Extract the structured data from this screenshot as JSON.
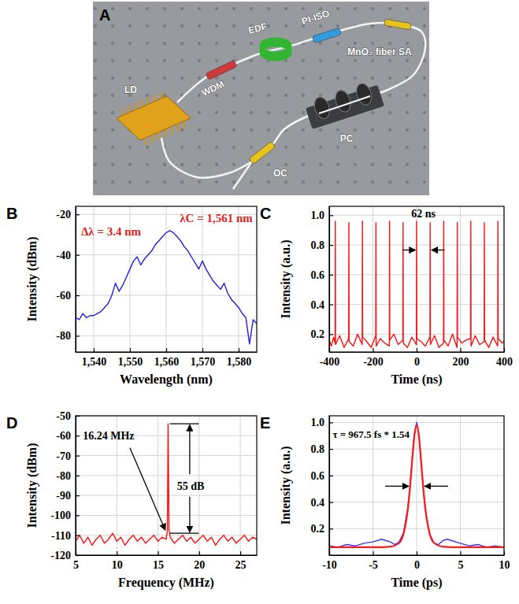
{
  "diagram": {
    "panel_label": "A",
    "components": [
      "LD",
      "WDM",
      "EDF",
      "PI-ISO",
      "MnO₂ fiber SA",
      "PC",
      "OC"
    ]
  },
  "chart_data": [
    {
      "panel_label": "B",
      "type": "line",
      "x_label": "Wavelength (nm)",
      "y_label": "Intensity (dBm)",
      "xlim": [
        1535,
        1585
      ],
      "xticks": [
        {
          "value": 1540,
          "label": "1,540"
        },
        {
          "value": 1550,
          "label": "1,550"
        },
        {
          "value": 1560,
          "label": "1,560"
        },
        {
          "value": 1570,
          "label": "1,570"
        },
        {
          "value": 1580,
          "label": "1,580"
        }
      ],
      "ylim": [
        -88,
        -16
      ],
      "yticks": [
        -80,
        -60,
        -40,
        -20
      ],
      "grid": true,
      "x": [
        1535,
        1536,
        1537,
        1538,
        1539,
        1540,
        1541,
        1542,
        1543,
        1544,
        1545,
        1546,
        1547,
        1548,
        1549,
        1550,
        1551,
        1552,
        1553,
        1554,
        1555,
        1556,
        1557,
        1558,
        1559,
        1560,
        1561,
        1562,
        1563,
        1564,
        1565,
        1566,
        1567,
        1568,
        1569,
        1570,
        1571,
        1572,
        1573,
        1574,
        1575,
        1576,
        1577,
        1578,
        1579,
        1580,
        1581,
        1582,
        1583,
        1584,
        1585
      ],
      "series": [
        {
          "color": "#1f1fe0",
          "values": [
            -71,
            -72,
            -69,
            -71,
            -70,
            -70,
            -69,
            -68,
            -66,
            -64,
            -60,
            -54,
            -58,
            -55,
            -51,
            -47,
            -43,
            -41,
            -45,
            -42,
            -40,
            -38,
            -35,
            -33,
            -31,
            -29,
            -28,
            -29,
            -31,
            -33,
            -36,
            -38,
            -41,
            -44,
            -47,
            -43,
            -47,
            -50,
            -53,
            -55,
            -57,
            -54,
            -59,
            -62,
            -64,
            -66,
            -69,
            -71,
            -84,
            -72,
            -74
          ]
        }
      ],
      "annotations": [
        "Δλ = 3.4 nm",
        "λC = 1,561 nm"
      ]
    },
    {
      "panel_label": "C",
      "type": "line",
      "x_label": "Time (ns)",
      "y_label": "Intensity (a.u.)",
      "xlim": [
        -400,
        400
      ],
      "xticks": [
        -400,
        -200,
        0,
        200,
        400
      ],
      "ylim": [
        0.08,
        1.06
      ],
      "yticks": [
        0.2,
        0.4,
        0.6,
        0.8,
        {
          "value": 1,
          "label": "1.0"
        }
      ],
      "grid": true,
      "x": [
        -400,
        -390,
        -380,
        -373,
        -372,
        -371,
        -352,
        -332,
        -311,
        -310,
        -309,
        -290,
        -270,
        -249,
        -248,
        -247,
        -228,
        -208,
        -187,
        -186,
        -185,
        -166,
        -146,
        -125,
        -124,
        -123,
        -104,
        -84,
        -63,
        -62,
        -61,
        -42,
        -22,
        -1,
        0,
        1,
        20,
        40,
        61,
        62,
        63,
        82,
        102,
        123,
        124,
        125,
        144,
        164,
        185,
        186,
        187,
        206,
        226,
        247,
        248,
        249,
        268,
        288,
        309,
        310,
        311,
        330,
        350,
        371,
        372,
        373,
        392,
        400
      ],
      "series": [
        {
          "color": "#ff1010",
          "values": [
            0.16,
            0.12,
            0.18,
            0.14,
            0.96,
            0.13,
            0.19,
            0.11,
            0.17,
            0.95,
            0.15,
            0.12,
            0.2,
            0.13,
            0.96,
            0.18,
            0.15,
            0.11,
            0.19,
            0.95,
            0.12,
            0.17,
            0.14,
            0.12,
            0.96,
            0.16,
            0.2,
            0.13,
            0.16,
            0.95,
            0.14,
            0.11,
            0.18,
            0.13,
            0.96,
            0.17,
            0.15,
            0.12,
            0.18,
            0.95,
            0.13,
            0.19,
            0.11,
            0.14,
            0.96,
            0.16,
            0.12,
            0.2,
            0.11,
            0.95,
            0.18,
            0.14,
            0.16,
            0.17,
            0.96,
            0.12,
            0.19,
            0.13,
            0.15,
            0.95,
            0.16,
            0.11,
            0.18,
            0.12,
            0.96,
            0.17,
            0.14,
            0.15
          ]
        }
      ],
      "annotations": [
        "62 ns"
      ]
    },
    {
      "panel_label": "D",
      "type": "line",
      "x_label": "Frequency (MHz)",
      "y_label": "Intensity (dBm)",
      "xlim": [
        5,
        27
      ],
      "xticks": [
        5,
        10,
        15,
        20,
        25
      ],
      "ylim": [
        -120,
        -50
      ],
      "yticks": [
        -120,
        -110,
        -100,
        -90,
        -80,
        -70,
        -60,
        -50
      ],
      "grid": true,
      "x": [
        5,
        5.5,
        6,
        6.5,
        7,
        7.5,
        8,
        8.5,
        9,
        9.5,
        10,
        10.5,
        11,
        11.5,
        12,
        12.5,
        13,
        13.5,
        14,
        14.5,
        15,
        15.5,
        16,
        16.14,
        16.24,
        16.34,
        16.5,
        17,
        17.5,
        18,
        18.5,
        19,
        19.5,
        20,
        20.5,
        21,
        21.5,
        22,
        22.5,
        23,
        23.5,
        24,
        24.5,
        25,
        25.5,
        26,
        26.5,
        27
      ],
      "series": [
        {
          "color": "#ff1010",
          "values": [
            -113,
            -110,
            -114,
            -111,
            -115,
            -112,
            -110,
            -114,
            -112,
            -109,
            -113,
            -111,
            -115,
            -112,
            -110,
            -113,
            -111,
            -114,
            -112,
            -110,
            -113,
            -111,
            -112,
            -108,
            -54,
            -107,
            -111,
            -114,
            -112,
            -110,
            -113,
            -111,
            -114,
            -112,
            -110,
            -113,
            -111,
            -115,
            -112,
            -110,
            -113,
            -111,
            -114,
            -112,
            -110,
            -113,
            -111,
            -112
          ]
        }
      ],
      "annotations": [
        "16.24 MHz",
        "55 dB"
      ]
    },
    {
      "panel_label": "E",
      "type": "line",
      "x_label": "Time (ps)",
      "y_label": "Intensity (a.u.)",
      "xlim": [
        -10,
        10
      ],
      "xticks": [
        -10,
        -5,
        0,
        5,
        10
      ],
      "ylim": [
        0,
        1.05
      ],
      "yticks": [
        0.2,
        0.4,
        0.6,
        0.8,
        {
          "value": 1,
          "label": "1.0"
        }
      ],
      "grid": true,
      "series": [
        {
          "color": "#3636f5",
          "x": [
            -10,
            -9,
            -8,
            -7,
            -6,
            -5,
            -4,
            -3.5,
            -3,
            -2.5,
            -2,
            -1.5,
            -1,
            -0.75,
            -0.5,
            -0.25,
            0,
            0.25,
            0.5,
            0.75,
            1,
            1.5,
            2,
            2.5,
            3,
            3.5,
            4,
            5,
            6,
            7,
            8,
            9,
            10
          ],
          "values": [
            0.07,
            0.06,
            0.08,
            0.07,
            0.09,
            0.1,
            0.12,
            0.11,
            0.1,
            0.08,
            0.1,
            0.17,
            0.36,
            0.52,
            0.73,
            0.91,
            1.0,
            0.92,
            0.71,
            0.5,
            0.34,
            0.16,
            0.09,
            0.08,
            0.11,
            0.12,
            0.11,
            0.09,
            0.07,
            0.08,
            0.06,
            0.07,
            0.06
          ]
        },
        {
          "color": "#ff1a1a",
          "x": [
            -10,
            -4,
            -3,
            -2,
            -1.5,
            -1,
            -0.75,
            -0.5,
            -0.25,
            0,
            0.25,
            0.5,
            0.75,
            1,
            1.5,
            2,
            3,
            4,
            10
          ],
          "values": [
            0.06,
            0.06,
            0.064,
            0.092,
            0.16,
            0.349,
            0.515,
            0.72,
            0.904,
            0.98,
            0.904,
            0.72,
            0.515,
            0.349,
            0.16,
            0.092,
            0.064,
            0.06,
            0.06
          ]
        }
      ],
      "annotations": [
        "τ = 967.5 fs * 1.54"
      ]
    }
  ]
}
